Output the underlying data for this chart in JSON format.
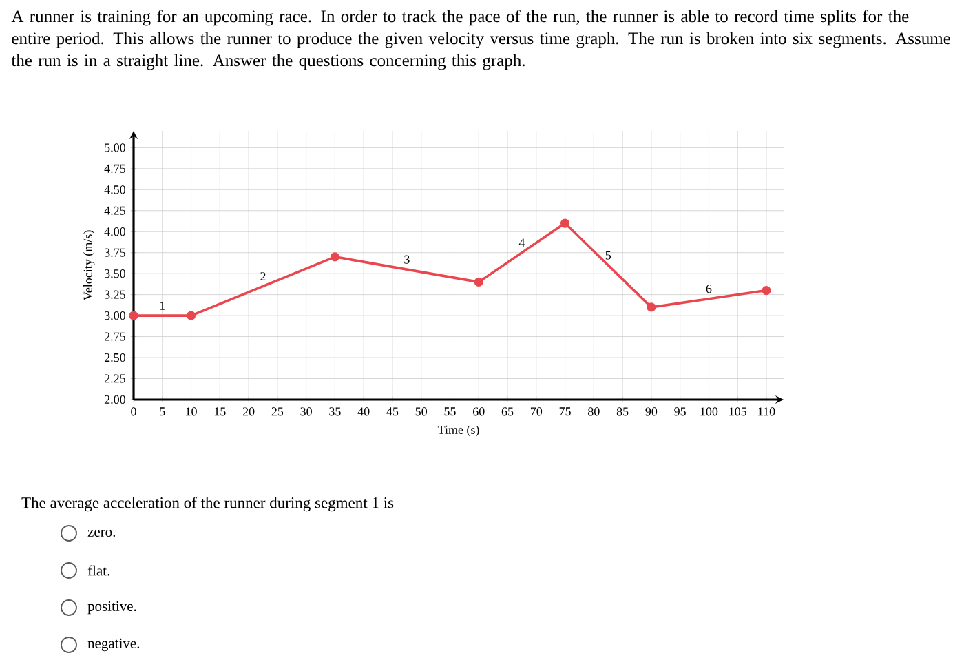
{
  "chart_data": {
    "type": "line",
    "title": "A runner is training for an upcoming race. In order to track the pace of the run, the runner is able to record time splits for the entire period. This allows the runner to produce the given velocity versus time graph. The run is broken into six segments. Assume the run is in a straight line. Answer the questions concerning this graph.",
    "xlabel": "Time (s)",
    "ylabel": "Velocity (m/s)",
    "x": [
      0,
      10,
      35,
      60,
      75,
      90,
      110
    ],
    "series": [
      {
        "color": "#e8474f",
        "values": [
          3.0,
          3.0,
          3.7,
          3.4,
          4.1,
          3.1,
          3.3
        ]
      }
    ],
    "xlim": [
      0,
      113
    ],
    "ylim": [
      2,
      5.2
    ],
    "xticks": [
      0,
      5,
      10,
      15,
      20,
      25,
      30,
      35,
      40,
      45,
      50,
      55,
      60,
      65,
      70,
      75,
      80,
      85,
      90,
      95,
      100,
      105,
      110
    ],
    "yticks": [
      {
        "value": 2,
        "label": "2.00"
      },
      {
        "value": 2.25,
        "label": "2.25"
      },
      {
        "value": 2.5,
        "label": "2.50"
      },
      {
        "value": 2.75,
        "label": "2.75"
      },
      {
        "value": 3,
        "label": "3.00"
      },
      {
        "value": 3.25,
        "label": "3.25"
      },
      {
        "value": 3.5,
        "label": "3.50"
      },
      {
        "value": 3.75,
        "label": "3.75"
      },
      {
        "value": 4,
        "label": "4.00"
      },
      {
        "value": 4.25,
        "label": "4.25"
      },
      {
        "value": 4.5,
        "label": "4.50"
      },
      {
        "value": 4.75,
        "label": "4.75"
      },
      {
        "value": 5,
        "label": "5.00"
      }
    ],
    "grid": true,
    "marker": "circle",
    "line_style": "solid",
    "annotations": [
      {
        "text": "1",
        "x": 5,
        "y": 3.0
      },
      {
        "text": "2",
        "x": 22.5,
        "y": 3.35
      },
      {
        "text": "3",
        "x": 47.5,
        "y": 3.55
      },
      {
        "text": "4",
        "x": 67.5,
        "y": 3.75
      },
      {
        "text": "5",
        "x": 82.5,
        "y": 3.6
      },
      {
        "text": "6",
        "x": 100,
        "y": 3.2
      },
      "The average acceleration of the runner during segment 1 is",
      "zero.",
      "flat.",
      "positive.",
      "negative."
    ]
  }
}
